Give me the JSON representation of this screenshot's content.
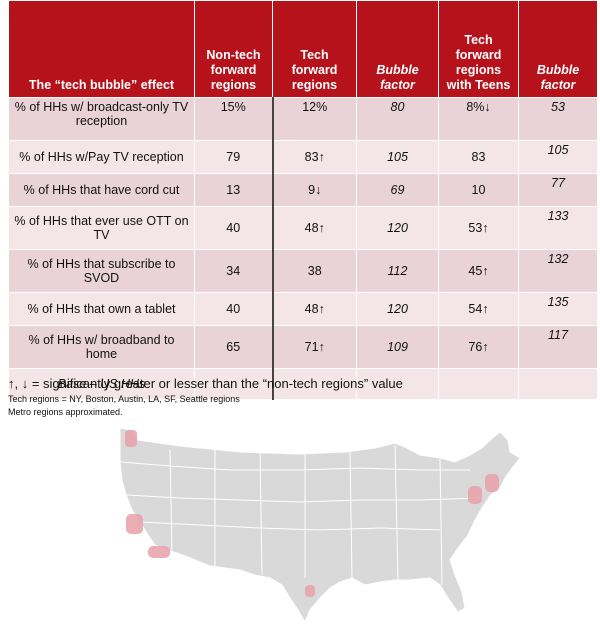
{
  "table": {
    "headers": [
      "The “tech bubble” effect",
      "Non-tech forward regions",
      "Tech forward regions",
      "Bubble factor",
      "Tech forward regions with Teens",
      "Bubble factor"
    ],
    "rows": [
      {
        "label": "% of HHs w/ broadcast-only TV reception",
        "nontech": "15%",
        "tech": "12%",
        "bf1": "80",
        "teens": "8%↓",
        "bf2": "53"
      },
      {
        "label": "% of HHs w/Pay TV reception",
        "nontech": "79",
        "tech": "83↑",
        "bf1": "105",
        "teens": "83",
        "bf2": "105"
      },
      {
        "label": "% of HHs that have cord cut",
        "nontech": "13",
        "tech": "9↓",
        "bf1": "69",
        "teens": "10",
        "bf2": "77"
      },
      {
        "label": "% of HHs that ever use OTT on TV",
        "nontech": "40",
        "tech": "48↑",
        "bf1": "120",
        "teens": "53↑",
        "bf2": "133"
      },
      {
        "label": "% of HHs that subscribe to SVOD",
        "nontech": "34",
        "tech": "38",
        "bf1": "112",
        "teens": "45↑",
        "bf2": "132"
      },
      {
        "label": "% of HHs that own a tablet",
        "nontech": "40",
        "tech": "48↑",
        "bf1": "120",
        "teens": "54↑",
        "bf2": "135"
      },
      {
        "label": "% of HHs w/ broadband to home",
        "nontech": "65",
        "tech": "71↑",
        "bf1": "109",
        "teens": "76↑",
        "bf2": "117"
      }
    ],
    "base_label": "Base – US HHs"
  },
  "legend": "↑, ↓ = significantly greater or lesser than the “non-tech regions” value",
  "note_tech_regions": "Tech regions = NY, Boston, Austin, LA, SF, Seattle regions",
  "note_metro": "Metro regions approximated.",
  "colors": {
    "header": "#b5121b",
    "row_dark": "#ead3d6",
    "row_light": "#f4e6e8",
    "map_land": "#d9d9d9",
    "highlight": "#e8a0a8"
  }
}
